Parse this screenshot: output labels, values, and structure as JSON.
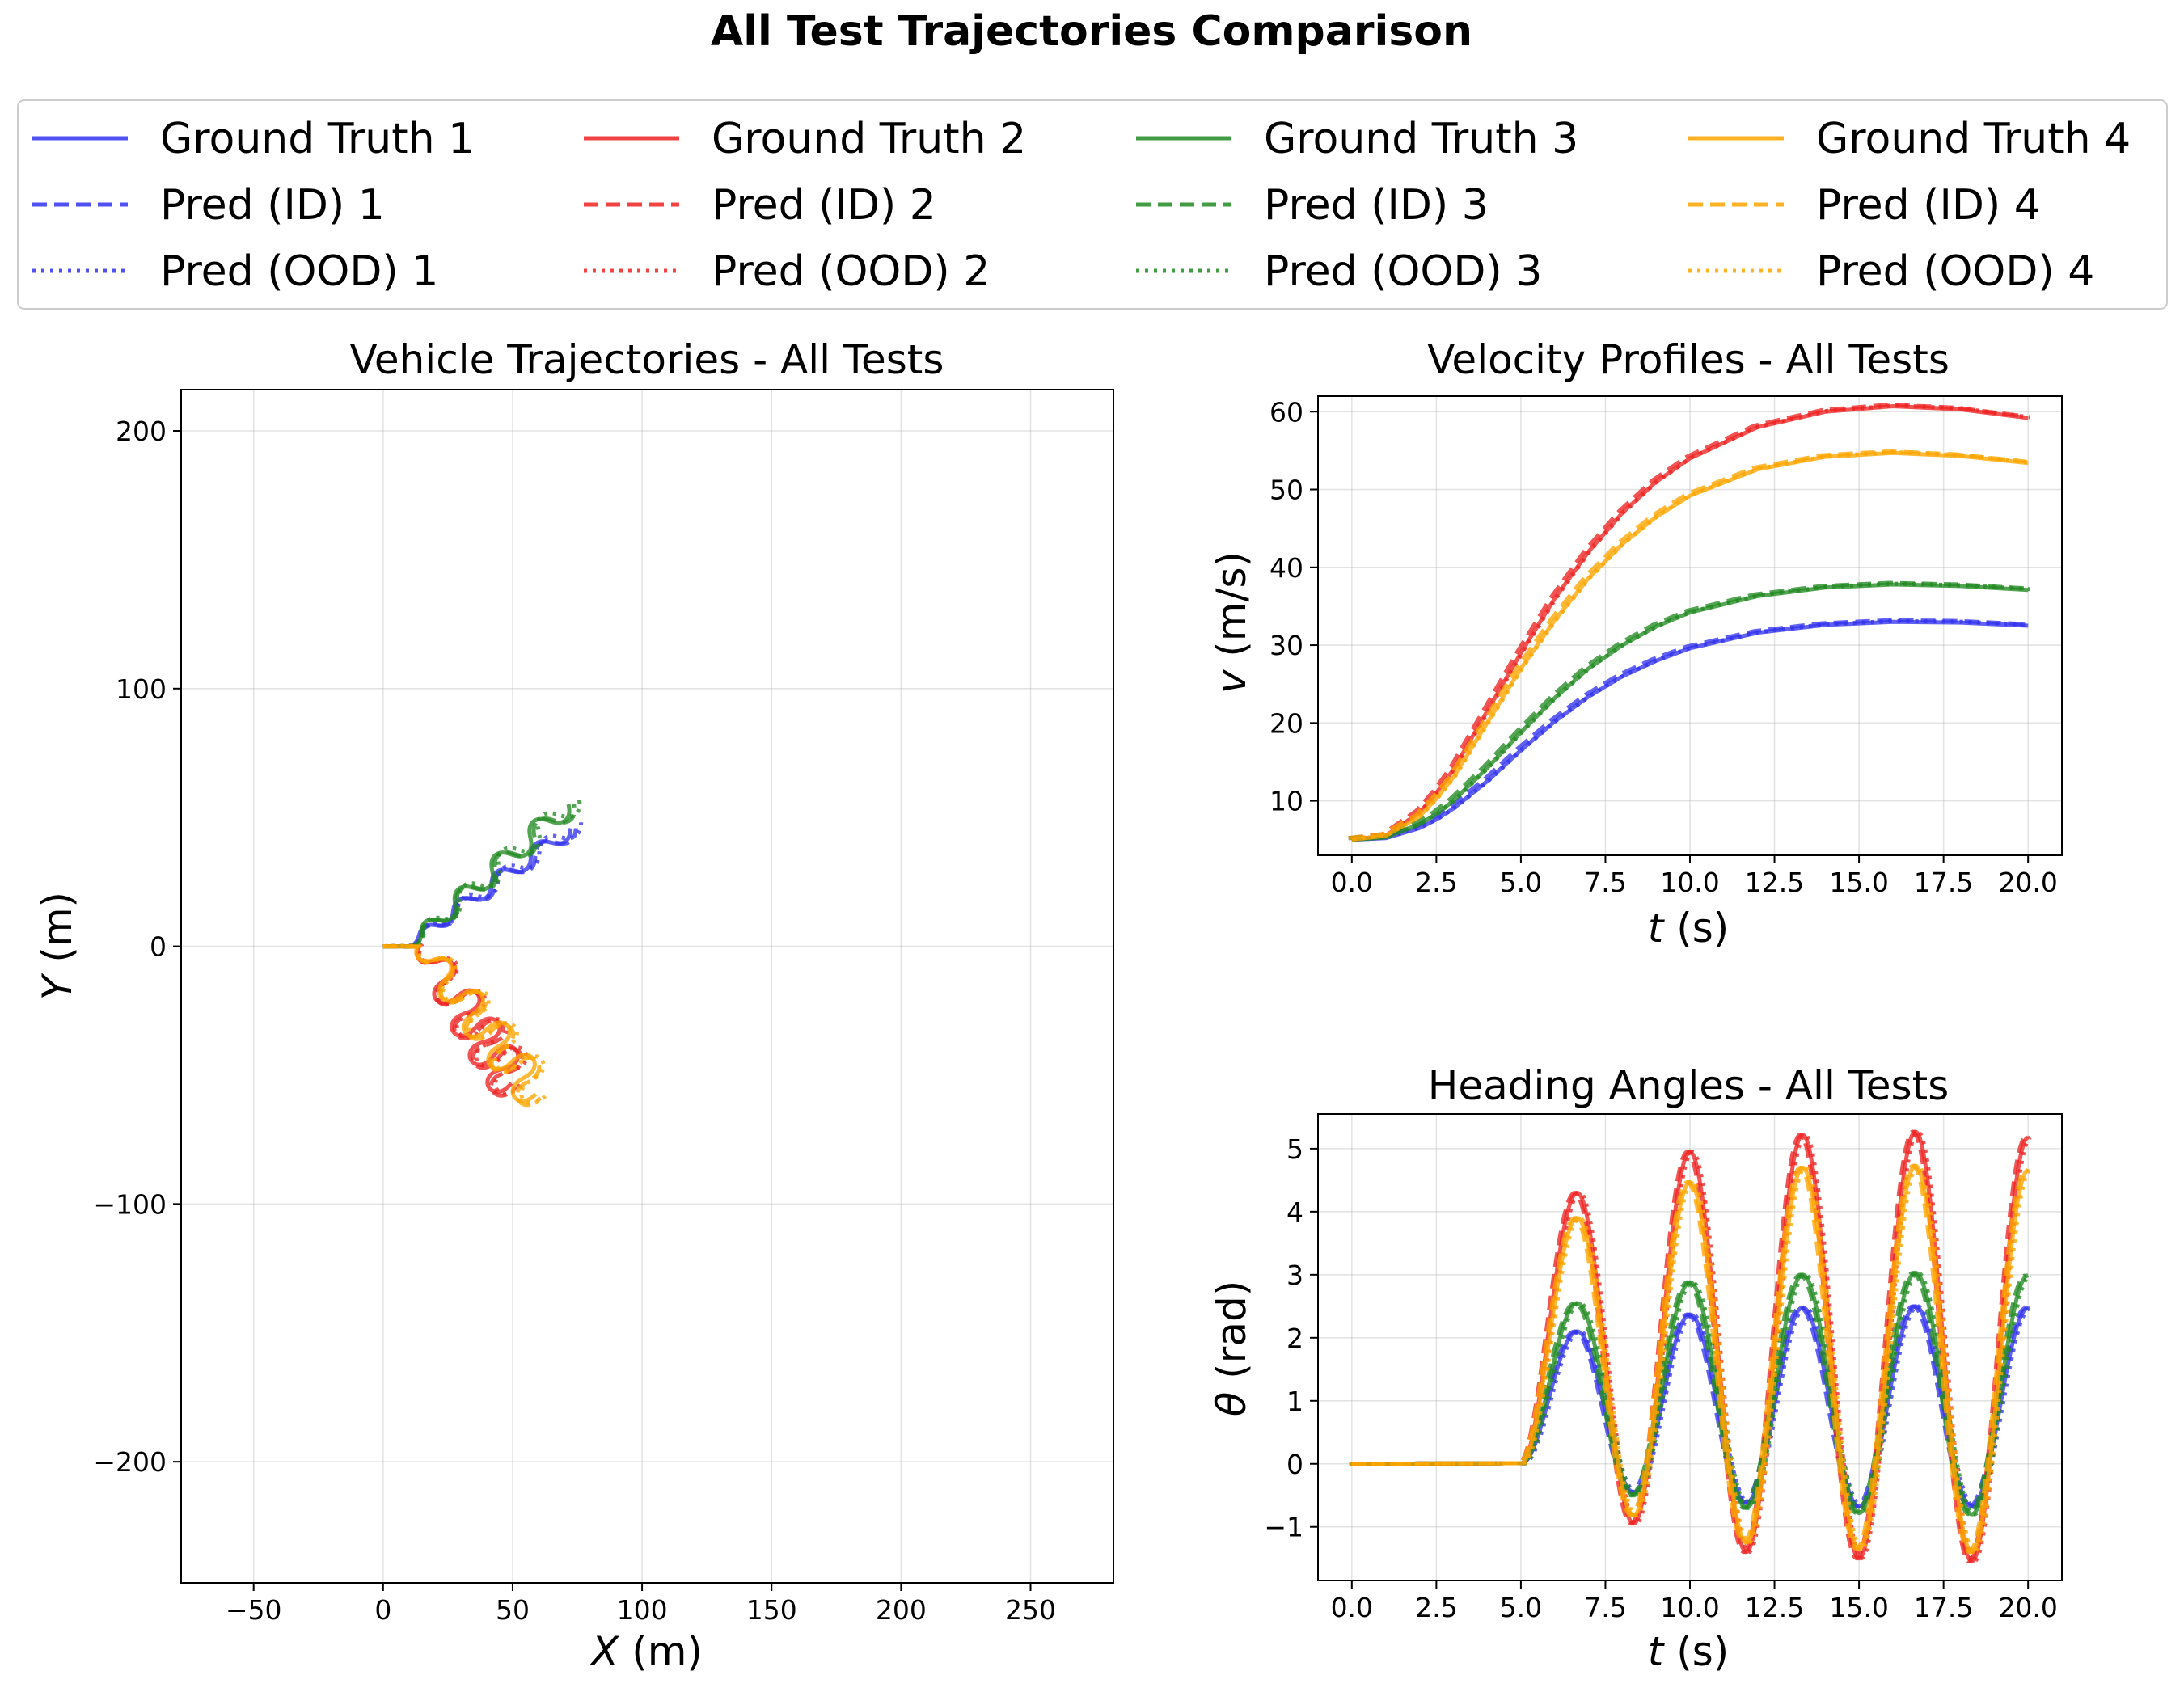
{
  "suptitle": "All Test Trajectories Comparison",
  "colors": {
    "1": "#3333ee",
    "2": "#ee2222",
    "3": "#228b22",
    "4": "#ffa500"
  },
  "legend": {
    "placement": "top-center",
    "columns": [
      {
        "color_key": "1",
        "entries": [
          {
            "label": "Ground Truth 1",
            "style": "solid"
          },
          {
            "label": "Pred (ID) 1",
            "style": "dashed"
          },
          {
            "label": "Pred (OOD) 1",
            "style": "dotted"
          }
        ]
      },
      {
        "color_key": "2",
        "entries": [
          {
            "label": "Ground Truth 2",
            "style": "solid"
          },
          {
            "label": "Pred (ID) 2",
            "style": "dashed"
          },
          {
            "label": "Pred (OOD) 2",
            "style": "dotted"
          }
        ]
      },
      {
        "color_key": "3",
        "entries": [
          {
            "label": "Ground Truth 3",
            "style": "solid"
          },
          {
            "label": "Pred (ID) 3",
            "style": "dashed"
          },
          {
            "label": "Pred (OOD) 3",
            "style": "dotted"
          }
        ]
      },
      {
        "color_key": "4",
        "entries": [
          {
            "label": "Ground Truth 4",
            "style": "solid"
          },
          {
            "label": "Pred (ID) 4",
            "style": "dashed"
          },
          {
            "label": "Pred (OOD) 4",
            "style": "dotted"
          }
        ]
      }
    ]
  },
  "chart_data": [
    {
      "id": "traj",
      "type": "line",
      "title": "Vehicle Trajectories - All Tests",
      "xlabel_italic": "X",
      "xlabel_rest": " (m)",
      "ylabel_italic": "Y",
      "ylabel_rest": " (m)",
      "xlim": [
        -78,
        282
      ],
      "ylim": [
        -247,
        216
      ],
      "xticks": [
        -50,
        0,
        50,
        100,
        150,
        200,
        250
      ],
      "yticks": [
        -200,
        -100,
        0,
        100,
        200
      ],
      "grid": true,
      "tests": [
        {
          "key": "1",
          "speed_max": 33,
          "amp": 0.36
        },
        {
          "key": "2",
          "speed_max": 60.7,
          "amp": 0.69
        },
        {
          "key": "3",
          "speed_max": 37.8,
          "amp": 0.42
        },
        {
          "key": "4",
          "speed_max": 54.7,
          "amp": 0.62
        }
      ]
    },
    {
      "id": "vel",
      "type": "line",
      "title": "Velocity Profiles - All Tests",
      "xlabel_italic": "t",
      "xlabel_rest": " (s)",
      "ylabel_italic": "v",
      "ylabel_rest": " (m/s)",
      "xlim": [
        -1,
        21
      ],
      "ylim": [
        3,
        62
      ],
      "xticks": [
        0,
        2.5,
        5,
        7.5,
        10,
        12.5,
        15,
        17.5,
        20
      ],
      "xtick_labels": [
        "0.0",
        "2.5",
        "5.0",
        "7.5",
        "10.0",
        "12.5",
        "15.0",
        "17.5",
        "20.0"
      ],
      "yticks": [
        10,
        20,
        30,
        40,
        50,
        60
      ],
      "grid": true,
      "series": [
        {
          "key": "1",
          "t": [
            0,
            1,
            2,
            2.5,
            3,
            4,
            5,
            6,
            7,
            8,
            9,
            10,
            12,
            14,
            16,
            18,
            20
          ],
          "v": [
            5,
            5.2,
            6.5,
            7.6,
            9,
            12.5,
            16.5,
            20.2,
            23.4,
            26,
            28,
            29.6,
            31.6,
            32.6,
            33,
            32.9,
            32.5
          ]
        },
        {
          "key": "2",
          "t": [
            0,
            1,
            2,
            2.5,
            3,
            4,
            5,
            6,
            7,
            8,
            9,
            10,
            12,
            14,
            16,
            18,
            20
          ],
          "v": [
            5,
            5.5,
            8.5,
            11,
            14,
            21.5,
            29,
            36,
            42,
            47,
            51,
            54,
            58,
            60,
            60.7,
            60.3,
            59.2
          ]
        },
        {
          "key": "3",
          "t": [
            0,
            1,
            2,
            2.5,
            3,
            4,
            5,
            6,
            7,
            8,
            9,
            10,
            12,
            14,
            16,
            18,
            20
          ],
          "v": [
            5,
            5.3,
            7,
            8.3,
            10,
            14.2,
            18.8,
            23.2,
            27,
            30,
            32.4,
            34.2,
            36.3,
            37.4,
            37.8,
            37.6,
            37.1
          ]
        },
        {
          "key": "4",
          "t": [
            0,
            1,
            2,
            2.5,
            3,
            4,
            5,
            6,
            7,
            8,
            9,
            10,
            12,
            14,
            16,
            18,
            20
          ],
          "v": [
            5,
            5.5,
            8,
            10.3,
            13,
            20,
            27,
            33.2,
            38.6,
            43,
            46.5,
            49.2,
            52.6,
            54.2,
            54.7,
            54.3,
            53.4
          ]
        }
      ]
    },
    {
      "id": "head",
      "type": "line",
      "title": "Heading Angles - All Tests",
      "xlabel_italic": "t",
      "xlabel_rest": " (s)",
      "ylabel_italic": "θ",
      "ylabel_rest": " (rad)",
      "xlim": [
        -1,
        21
      ],
      "ylim": [
        -1.85,
        5.55
      ],
      "xticks": [
        0,
        2.5,
        5,
        7.5,
        10,
        12.5,
        15,
        17.5,
        20
      ],
      "xtick_labels": [
        "0.0",
        "2.5",
        "5.0",
        "7.5",
        "10.0",
        "12.5",
        "15.0",
        "17.5",
        "20.0"
      ],
      "yticks": [
        -1,
        0,
        1,
        2,
        3,
        4,
        5
      ],
      "grid": true,
      "series": [
        {
          "key": "1",
          "peaks": [
            2.1,
            2.37,
            2.48,
            2.5,
            2.47
          ],
          "troughs": [
            -0.45,
            -0.62,
            -0.68,
            -0.68
          ]
        },
        {
          "key": "2",
          "peaks": [
            4.3,
            4.95,
            5.22,
            5.27,
            5.18
          ],
          "troughs": [
            -0.95,
            -1.4,
            -1.5,
            -1.55
          ]
        },
        {
          "key": "3",
          "peaks": [
            2.55,
            2.88,
            3.0,
            3.03,
            2.99
          ],
          "troughs": [
            -0.5,
            -0.7,
            -0.78,
            -0.8
          ]
        },
        {
          "key": "4",
          "peaks": [
            3.9,
            4.47,
            4.7,
            4.73,
            4.66
          ],
          "troughs": [
            -0.82,
            -1.25,
            -1.35,
            -1.4
          ]
        }
      ]
    }
  ]
}
